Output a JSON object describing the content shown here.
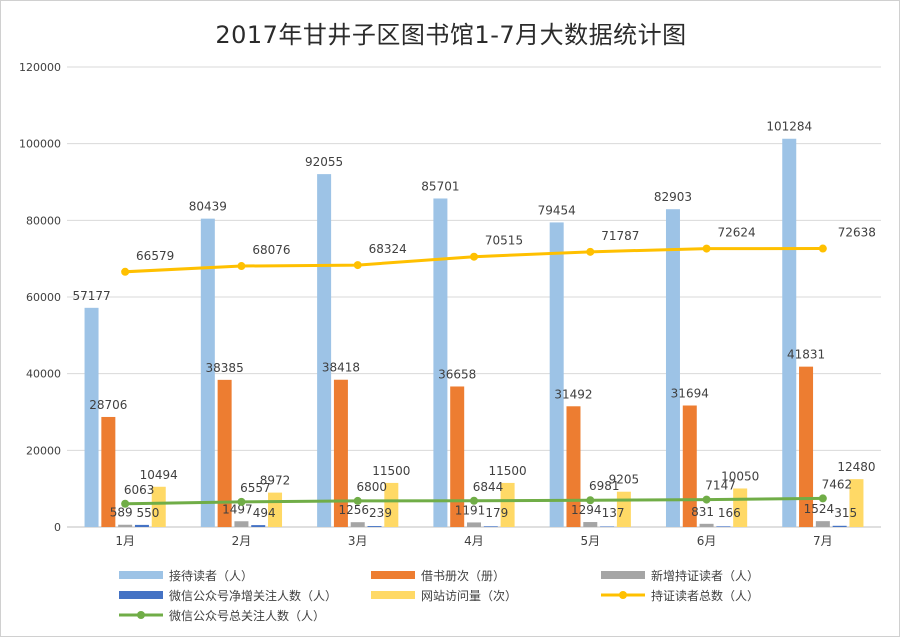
{
  "title": "2017年甘井子区图书馆1-7月大数据统计图",
  "chart_data": {
    "type": "bar",
    "title": "2017年甘井子区图书馆1-7月大数据统计图",
    "categories": [
      "1月",
      "2月",
      "3月",
      "4月",
      "5月",
      "6月",
      "7月"
    ],
    "ylim": [
      0,
      120000
    ],
    "yticks": [
      "0",
      "20000",
      "40000",
      "60000",
      "80000",
      "100000",
      "120000"
    ],
    "grid": true,
    "legend_position": "bottom",
    "series": [
      {
        "name": "接待读者（人）",
        "kind": "bar",
        "color": "#9dc3e6",
        "values": [
          57177,
          80439,
          92055,
          85701,
          79454,
          82903,
          101284
        ]
      },
      {
        "name": "借书册次（册）",
        "kind": "bar",
        "color": "#ed7d31",
        "values": [
          28706,
          38385,
          38418,
          36658,
          31492,
          31694,
          41831
        ]
      },
      {
        "name": "新增持证读者（人）",
        "kind": "bar",
        "color": "#a5a5a5",
        "values": [
          589,
          1497,
          1256,
          1191,
          1294,
          831,
          1524
        ]
      },
      {
        "name": "微信公众号净增关注人数（人）",
        "kind": "bar",
        "color": "#4472c4",
        "values": [
          550,
          494,
          239,
          179,
          137,
          166,
          315
        ]
      },
      {
        "name": "网站访问量（次）",
        "kind": "bar",
        "color": "#ffd966",
        "values": [
          10494,
          8972,
          11500,
          11500,
          9205,
          10050,
          12480
        ]
      },
      {
        "name": "持证读者总数（人）",
        "kind": "line",
        "color": "#ffc000",
        "values": [
          66579,
          68076,
          68324,
          70515,
          71787,
          72624,
          72638
        ]
      },
      {
        "name": "微信公众号总关注人数（人）",
        "kind": "line",
        "color": "#70ad47",
        "values": [
          6063,
          6557,
          6800,
          6844,
          6981,
          7147,
          7462
        ]
      }
    ]
  }
}
